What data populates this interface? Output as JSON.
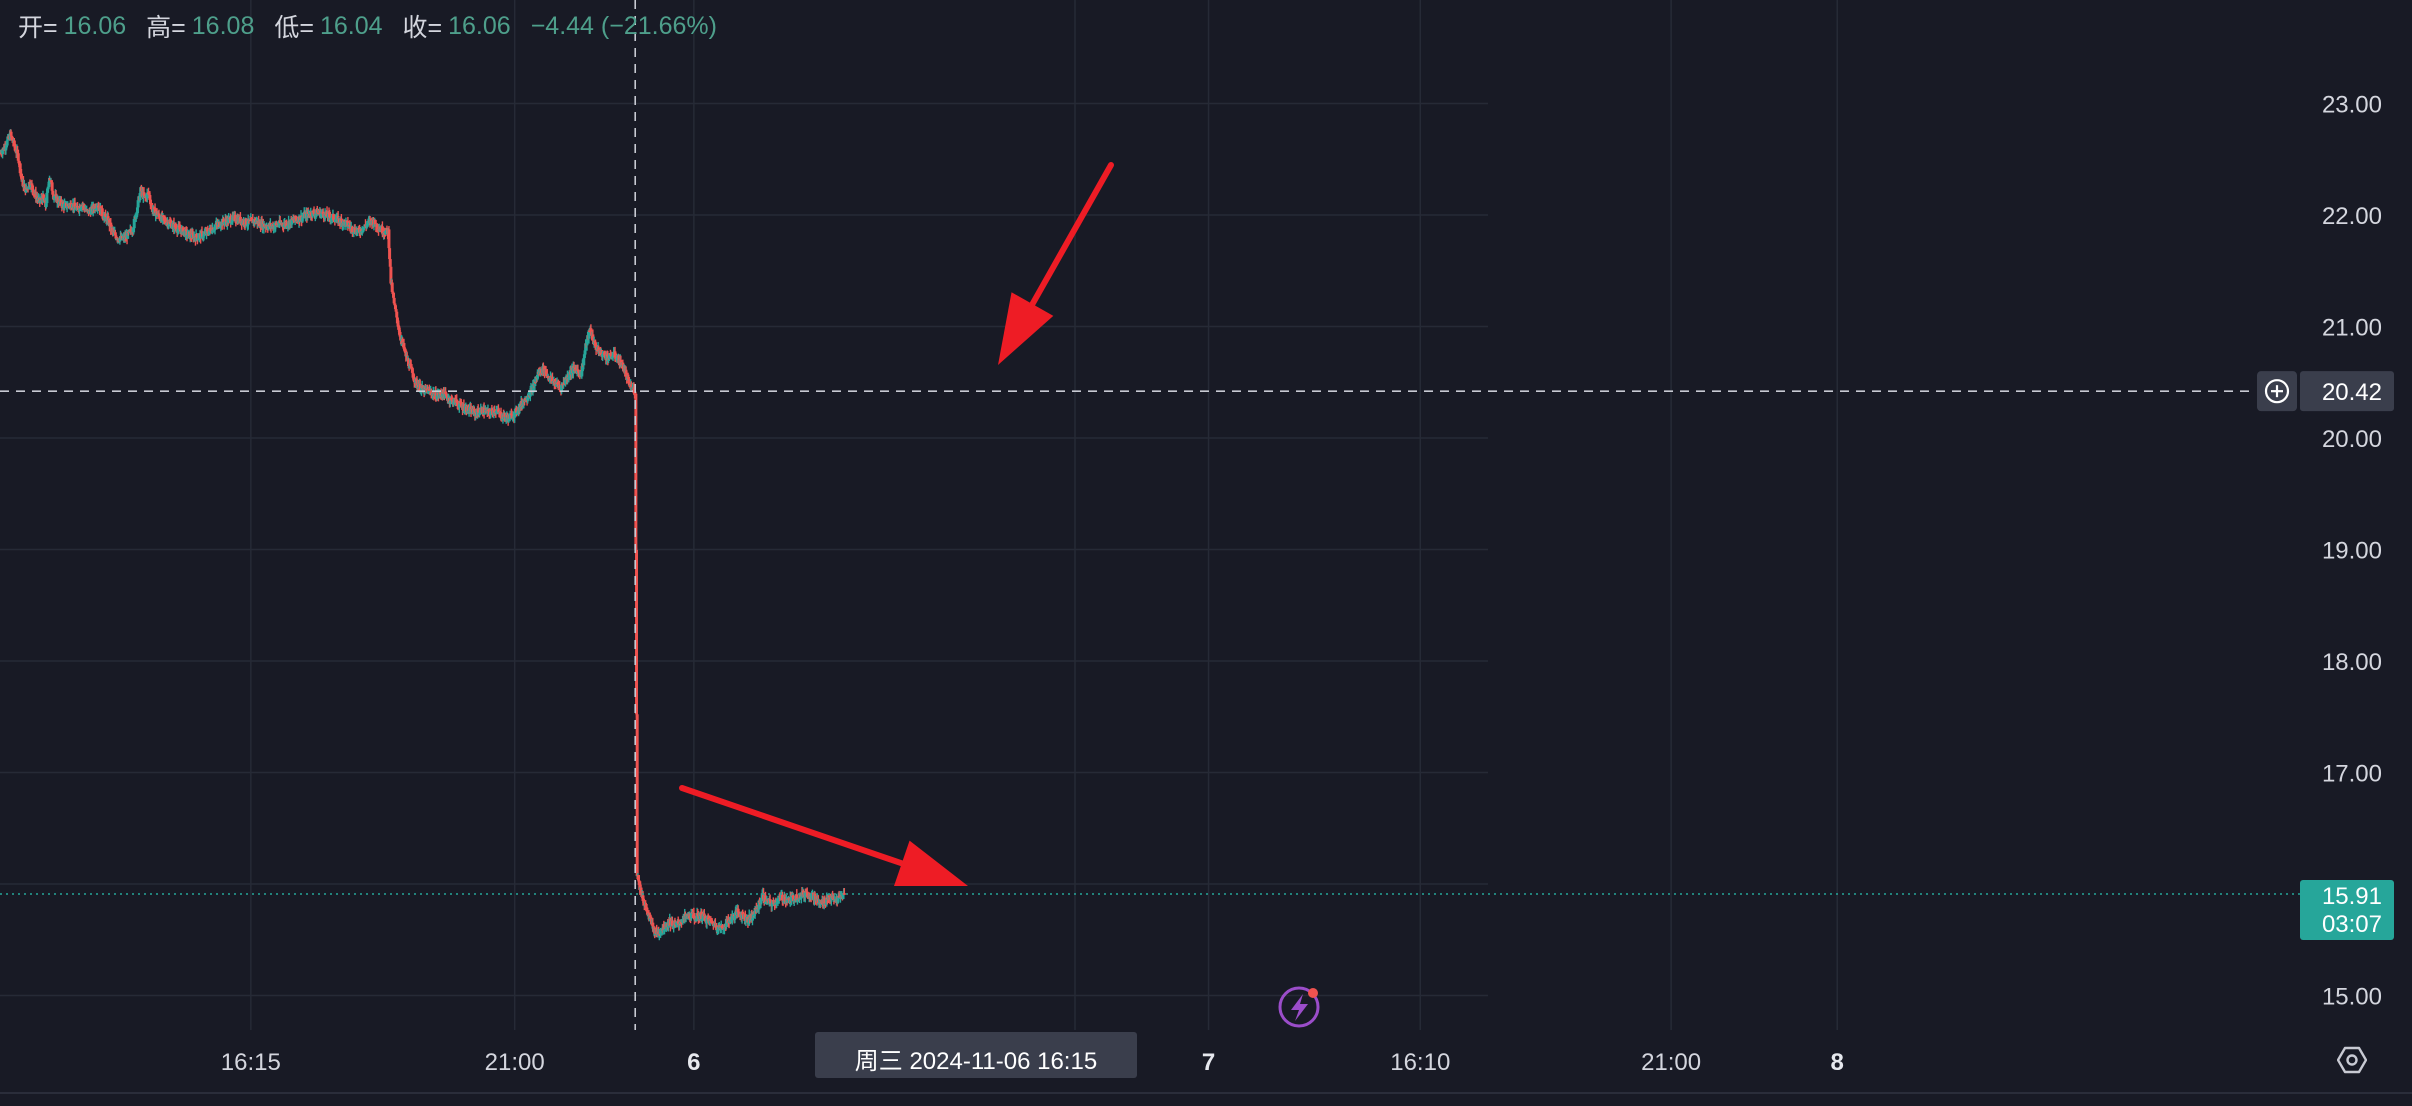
{
  "ohlc": {
    "open_label": "开=",
    "open_value": "16.06",
    "high_label": "高=",
    "high_value": "16.08",
    "low_label": "低=",
    "low_value": "16.04",
    "close_label": "收=",
    "close_value": "16.06",
    "change": "−4.44 (−21.66%)"
  },
  "crosshair": {
    "price_label": "20.42",
    "time_label": "周三 2024-11-06   16:15"
  },
  "last_price": {
    "price": "15.91",
    "countdown": "03:07"
  },
  "colors": {
    "background": "#181a25",
    "up": "#26a69a",
    "down": "#ef5350",
    "grid": "#262a36",
    "axis_text": "#d4d6de",
    "arrow": "#ee1c25",
    "last_price_bg": "#26a69a",
    "lightning": "#9b4dca"
  },
  "icons": [
    "crosshair-plus-icon",
    "lightning-icon",
    "settings-icon"
  ],
  "chart_data": {
    "type": "candlestick",
    "y_axis": {
      "min": 14.8,
      "max": 24.0,
      "ticks": [
        "23.00",
        "22.00",
        "21.00",
        "20.00",
        "19.00",
        "18.00",
        "17.00",
        "15.00"
      ]
    },
    "x_axis_labels": [
      {
        "label": "16:15",
        "bold": false
      },
      {
        "label": "21:00",
        "bold": false
      },
      {
        "label": "6",
        "bold": true
      },
      {
        "label": "21:00",
        "bold": false
      },
      {
        "label": "7",
        "bold": true
      },
      {
        "label": "16:10",
        "bold": false
      },
      {
        "label": "21:00",
        "bold": false
      },
      {
        "label": "8",
        "bold": true
      }
    ],
    "price_path": [
      [
        0,
        22.55
      ],
      [
        8,
        22.62
      ],
      [
        16,
        22.72
      ],
      [
        22,
        22.62
      ],
      [
        28,
        22.52
      ],
      [
        34,
        22.3
      ],
      [
        40,
        22.22
      ],
      [
        46,
        22.3
      ],
      [
        52,
        22.2
      ],
      [
        60,
        22.12
      ],
      [
        66,
        22.15
      ],
      [
        70,
        22.08
      ],
      [
        76,
        22.35
      ],
      [
        82,
        22.18
      ],
      [
        90,
        22.12
      ],
      [
        100,
        22.08
      ],
      [
        110,
        22.1
      ],
      [
        118,
        22.05
      ],
      [
        126,
        22.1
      ],
      [
        134,
        22.02
      ],
      [
        142,
        22.05
      ],
      [
        150,
        22.1
      ],
      [
        158,
        22.0
      ],
      [
        166,
        21.95
      ],
      [
        172,
        21.85
      ],
      [
        180,
        21.8
      ],
      [
        188,
        21.78
      ],
      [
        196,
        21.82
      ],
      [
        204,
        21.88
      ],
      [
        210,
        22.05
      ],
      [
        216,
        22.22
      ],
      [
        222,
        22.15
      ],
      [
        228,
        22.2
      ],
      [
        234,
        22.05
      ],
      [
        242,
        22.0
      ],
      [
        252,
        21.95
      ],
      [
        262,
        21.92
      ],
      [
        272,
        21.88
      ],
      [
        282,
        21.85
      ],
      [
        290,
        21.82
      ],
      [
        300,
        21.8
      ],
      [
        310,
        21.82
      ],
      [
        320,
        21.85
      ],
      [
        330,
        21.9
      ],
      [
        340,
        21.93
      ],
      [
        350,
        21.95
      ],
      [
        360,
        21.97
      ],
      [
        370,
        21.95
      ],
      [
        380,
        21.93
      ],
      [
        390,
        21.95
      ],
      [
        400,
        21.92
      ],
      [
        410,
        21.9
      ],
      [
        420,
        21.9
      ],
      [
        430,
        21.92
      ],
      [
        440,
        21.92
      ],
      [
        450,
        21.95
      ],
      [
        460,
        21.97
      ],
      [
        470,
        22.0
      ],
      [
        480,
        22.02
      ],
      [
        490,
        22.02
      ],
      [
        500,
        22.0
      ],
      [
        510,
        21.98
      ],
      [
        520,
        21.95
      ],
      [
        530,
        21.93
      ],
      [
        540,
        21.88
      ],
      [
        550,
        21.85
      ],
      [
        560,
        21.9
      ],
      [
        570,
        21.95
      ],
      [
        580,
        21.9
      ],
      [
        590,
        21.85
      ],
      [
        596,
        21.85
      ],
      [
        600,
        21.4
      ],
      [
        605,
        21.2
      ],
      [
        610,
        21.05
      ],
      [
        615,
        20.9
      ],
      [
        620,
        20.8
      ],
      [
        625,
        20.7
      ],
      [
        632,
        20.6
      ],
      [
        638,
        20.5
      ],
      [
        645,
        20.45
      ],
      [
        652,
        20.42
      ],
      [
        660,
        20.42
      ],
      [
        670,
        20.38
      ],
      [
        680,
        20.4
      ],
      [
        690,
        20.35
      ],
      [
        700,
        20.32
      ],
      [
        710,
        20.28
      ],
      [
        720,
        20.25
      ],
      [
        730,
        20.22
      ],
      [
        740,
        20.25
      ],
      [
        750,
        20.22
      ],
      [
        760,
        20.25
      ],
      [
        770,
        20.2
      ],
      [
        780,
        20.18
      ],
      [
        790,
        20.22
      ],
      [
        800,
        20.3
      ],
      [
        810,
        20.38
      ],
      [
        818,
        20.45
      ],
      [
        826,
        20.58
      ],
      [
        834,
        20.62
      ],
      [
        842,
        20.55
      ],
      [
        850,
        20.5
      ],
      [
        860,
        20.45
      ],
      [
        868,
        20.52
      ],
      [
        876,
        20.6
      ],
      [
        884,
        20.62
      ],
      [
        892,
        20.58
      ],
      [
        900,
        20.85
      ],
      [
        906,
        20.98
      ],
      [
        912,
        20.85
      ],
      [
        918,
        20.78
      ],
      [
        926,
        20.75
      ],
      [
        934,
        20.72
      ],
      [
        942,
        20.75
      ],
      [
        950,
        20.7
      ],
      [
        958,
        20.62
      ],
      [
        964,
        20.5
      ],
      [
        970,
        20.45
      ],
      [
        975,
        20.42
      ],
      [
        978,
        16.1
      ],
      [
        983,
        15.95
      ],
      [
        988,
        15.85
      ],
      [
        993,
        15.75
      ],
      [
        998,
        15.68
      ],
      [
        1003,
        15.6
      ],
      [
        1008,
        15.55
      ],
      [
        1013,
        15.58
      ],
      [
        1020,
        15.62
      ],
      [
        1028,
        15.66
      ],
      [
        1036,
        15.62
      ],
      [
        1044,
        15.66
      ],
      [
        1052,
        15.7
      ],
      [
        1060,
        15.72
      ],
      [
        1068,
        15.7
      ],
      [
        1076,
        15.72
      ],
      [
        1084,
        15.68
      ],
      [
        1092,
        15.66
      ],
      [
        1100,
        15.62
      ],
      [
        1108,
        15.6
      ],
      [
        1116,
        15.66
      ],
      [
        1124,
        15.7
      ],
      [
        1132,
        15.75
      ],
      [
        1140,
        15.72
      ],
      [
        1148,
        15.68
      ],
      [
        1156,
        15.72
      ],
      [
        1164,
        15.8
      ],
      [
        1170,
        15.9
      ],
      [
        1176,
        15.85
      ],
      [
        1184,
        15.82
      ],
      [
        1192,
        15.85
      ],
      [
        1200,
        15.88
      ],
      [
        1210,
        15.85
      ],
      [
        1220,
        15.88
      ],
      [
        1230,
        15.9
      ],
      [
        1240,
        15.92
      ],
      [
        1250,
        15.88
      ],
      [
        1258,
        15.82
      ],
      [
        1266,
        15.85
      ],
      [
        1274,
        15.88
      ],
      [
        1282,
        15.85
      ],
      [
        1290,
        15.88
      ],
      [
        1296,
        15.91
      ]
    ]
  }
}
